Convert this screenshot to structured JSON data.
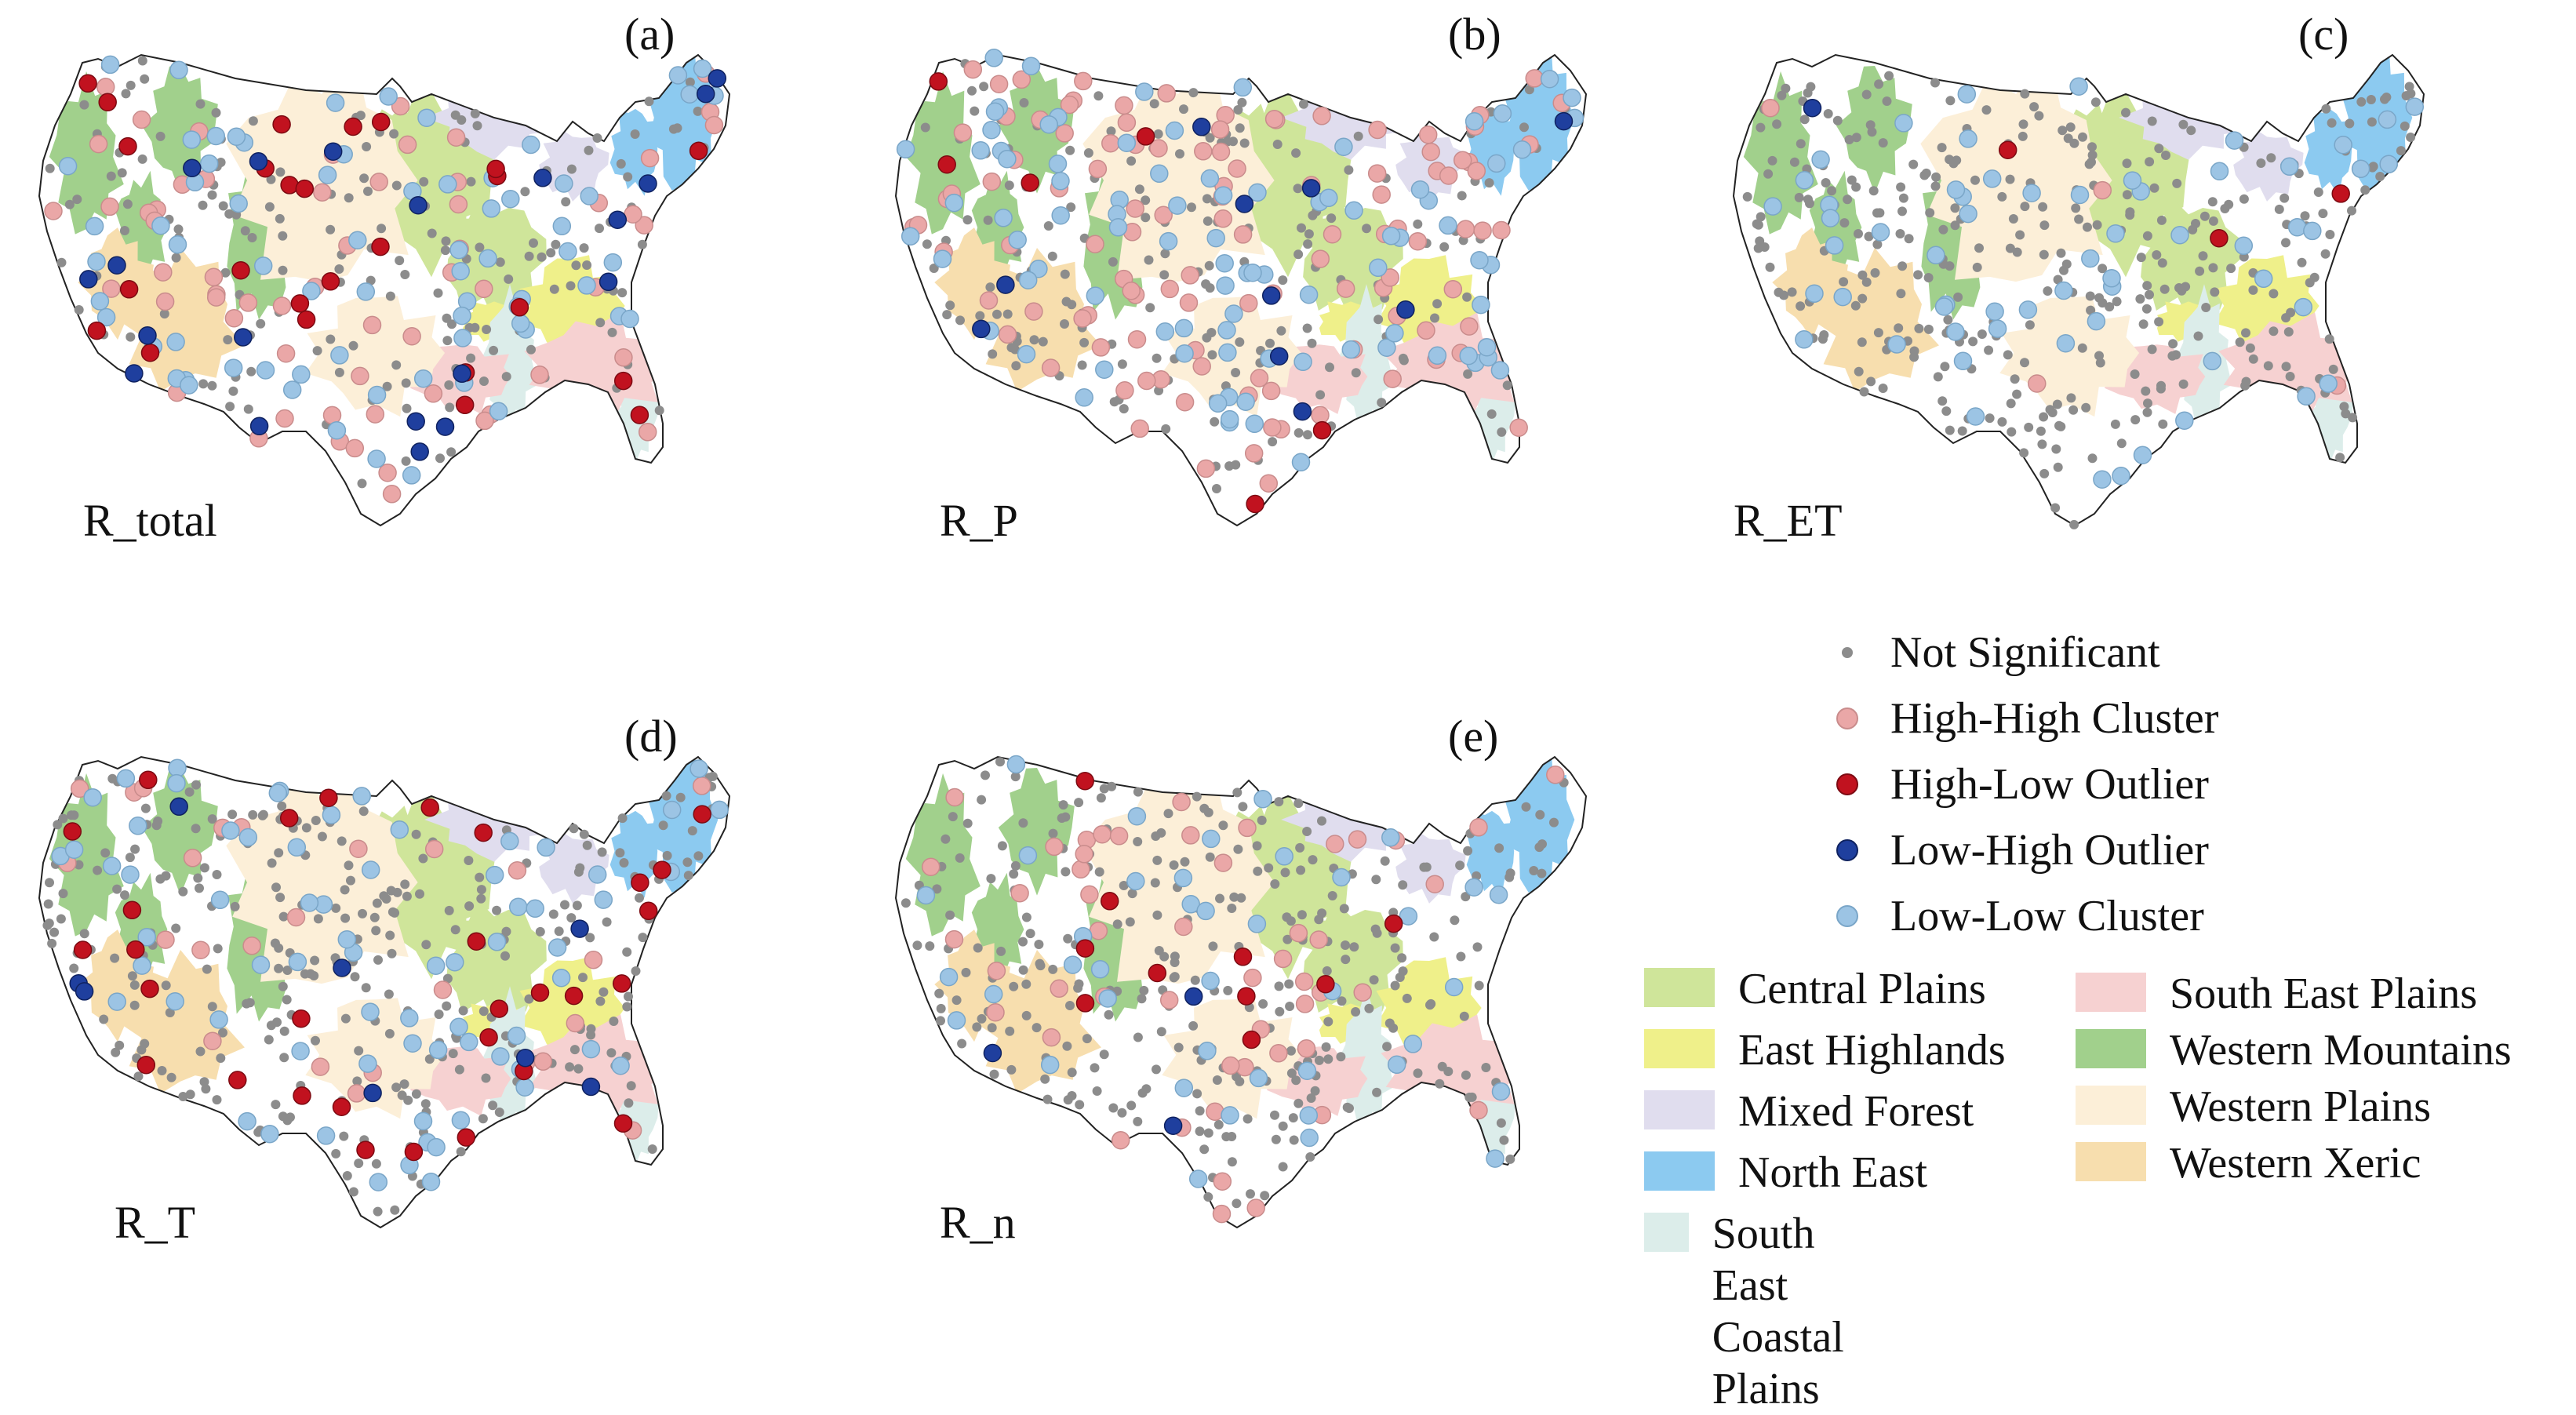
{
  "panels": [
    {
      "letter": "(a)",
      "var": "R_total",
      "key": "a"
    },
    {
      "letter": "(b)",
      "var": "R_P",
      "key": "b"
    },
    {
      "letter": "(c)",
      "var": "R_ET",
      "key": "c"
    },
    {
      "letter": "(d)",
      "var": "R_T",
      "key": "d"
    },
    {
      "letter": "(e)",
      "var": "R_n",
      "key": "e"
    }
  ],
  "legend": {
    "points": [
      {
        "label": "Not Significant",
        "color": "#8c8c8c",
        "outline": "#8c8c8c",
        "size": "small"
      },
      {
        "label": "High-High Cluster",
        "color": "#eaa7a7",
        "outline": "#c98c8c",
        "size": "large"
      },
      {
        "label": "High-Low Outlier",
        "color": "#c1121f",
        "outline": "#7d0a12",
        "size": "large"
      },
      {
        "label": "Low-High Outlier",
        "color": "#1f3f9e",
        "outline": "#0f2260",
        "size": "large"
      },
      {
        "label": "Low-Low Cluster",
        "color": "#9cc4e4",
        "outline": "#7aa6c8",
        "size": "large"
      }
    ],
    "regions": [
      {
        "label": "Central Plains",
        "color": "#cfe59a"
      },
      {
        "label": "East Highlands",
        "color": "#eff08a"
      },
      {
        "label": "Mixed Forest",
        "color": "#e0ddee"
      },
      {
        "label": "North East",
        "color": "#8ccaf0"
      },
      {
        "label": "South East\nCoastal Plains",
        "color": "#dcedea"
      },
      {
        "label": "South East Plains",
        "color": "#f6d1d1"
      },
      {
        "label": "Western Mountains",
        "color": "#a1d08c"
      },
      {
        "label": "Western Plains",
        "color": "#fcefd8"
      },
      {
        "label": "Western Xeric",
        "color": "#f7deae"
      }
    ]
  }
}
